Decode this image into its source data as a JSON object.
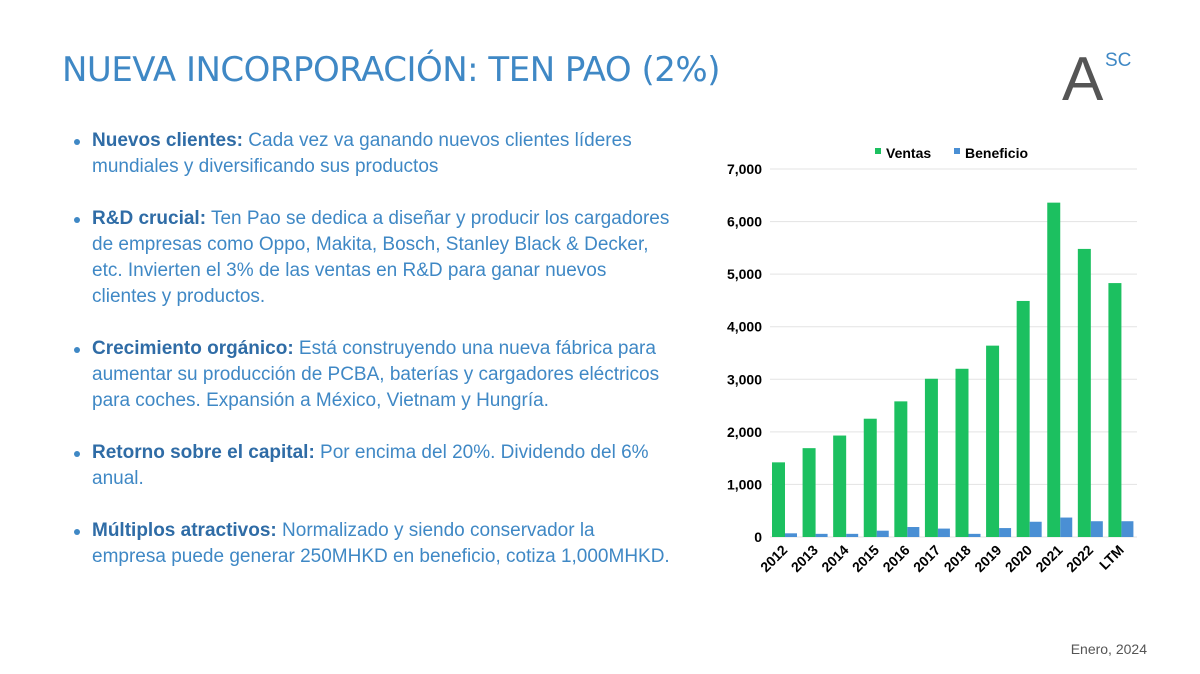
{
  "slide": {
    "title": "NUEVA INCORPORACIÓN: TEN PAO (2%)",
    "logo": {
      "letter": "A",
      "superscript": "SC"
    },
    "date": "Enero, 2024",
    "bullets": [
      {
        "lead": "Nuevos clientes:",
        "text": " Cada vez va ganando nuevos clientes líderes mundiales y diversificando sus productos"
      },
      {
        "lead": "R&D crucial:",
        "text": " Ten Pao se dedica a diseñar y producir los cargadores de empresas como Oppo, Makita, Bosch, Stanley Black & Decker, etc. Invierten el 3% de las ventas en R&D para ganar nuevos clientes y productos."
      },
      {
        "lead": "Crecimiento orgánico:",
        "text": " Está construyendo una nueva fábrica para aumentar su producción de PCBA, baterías y cargadores eléctricos para coches. Expansión a México, Vietnam y Hungría."
      },
      {
        "lead": "Retorno sobre el capital:",
        "text": " Por encima del 20%. Dividendo del 6% anual."
      },
      {
        "lead": "Múltiplos atractivos:",
        "text": " Normalizado y siendo conservador la empresa puede generar 250MHKD en beneficio, cotiza 1,000MHKD."
      }
    ]
  },
  "colors": {
    "title": "#3f88c5",
    "ventas": "#1cc060",
    "beneficio": "#4a8fd4",
    "logo": "#555555"
  },
  "chart_data": {
    "type": "bar",
    "categories": [
      "2012",
      "2013",
      "2014",
      "2015",
      "2016",
      "2017",
      "2018",
      "2019",
      "2020",
      "2021",
      "2022",
      "LTM"
    ],
    "series": [
      {
        "name": "Ventas",
        "values": [
          1420,
          1690,
          1930,
          2250,
          2580,
          3010,
          3200,
          3640,
          4490,
          6360,
          5480,
          4830
        ]
      },
      {
        "name": "Beneficio",
        "values": [
          70,
          60,
          60,
          120,
          190,
          160,
          60,
          170,
          290,
          370,
          300,
          300
        ]
      }
    ],
    "ylim": [
      0,
      7000
    ],
    "yticks": [
      0,
      1000,
      2000,
      3000,
      4000,
      5000,
      6000,
      7000
    ],
    "ytick_labels": [
      "0",
      "1,000",
      "2,000",
      "3,000",
      "4,000",
      "5,000",
      "6,000",
      "7,000"
    ],
    "legend_position": "top",
    "grid": true
  }
}
